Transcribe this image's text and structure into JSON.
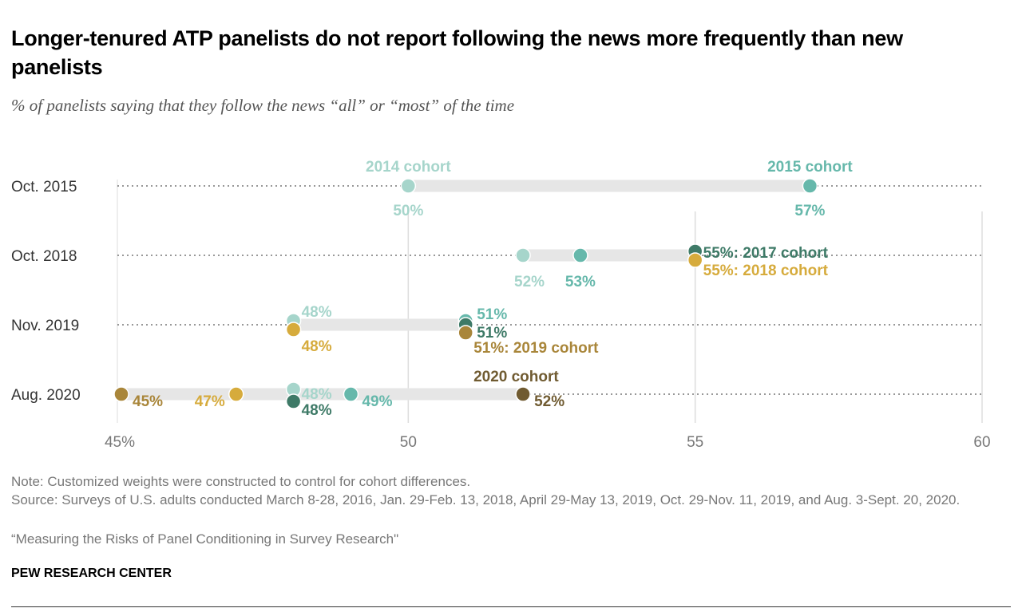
{
  "title": "Longer-tenured ATP panelists do not report following the news more frequently than new panelists",
  "subtitle": "% of panelists saying that they follow the news “all” or “most” of the time",
  "notes": {
    "note": "Note: Customized weights were constructed to control for cohort differences.",
    "source": "Source: Surveys of U.S. adults conducted March 8-28, 2016, Jan. 29-Feb. 13, 2018, April 29-May 13, 2019, Oct. 29-Nov. 11, 2019, and Aug. 3-Sept. 20, 2020.",
    "report": "“Measuring the Risks of Panel Conditioning in Survey Research\"",
    "brand": "PEW RESEARCH CENTER"
  },
  "chart_data": {
    "type": "dot",
    "xlim": [
      45,
      60
    ],
    "x_ticks": [
      "45%",
      "50",
      "55",
      "60"
    ],
    "x_tick_values": [
      45,
      50,
      55,
      60
    ],
    "categories": [
      "Oct. 2015",
      "Oct. 2018",
      "Nov. 2019",
      "Aug. 2020"
    ],
    "cohort_colors": {
      "2014": "#a6d5cb",
      "2015": "#66b8ab",
      "2017": "#3e7a67",
      "2018": "#d6ab3c",
      "2019": "#a9863a",
      "2020": "#705b31"
    },
    "rows": [
      {
        "category": "Oct. 2015",
        "points": [
          {
            "cohort": "2014",
            "value": 50,
            "label": "50%",
            "tag": "2014 cohort"
          },
          {
            "cohort": "2015",
            "value": 57,
            "label": "57%",
            "tag": "2015 cohort"
          }
        ]
      },
      {
        "category": "Oct. 2018",
        "points": [
          {
            "cohort": "2014",
            "value": 52,
            "label": "52%"
          },
          {
            "cohort": "2015",
            "value": 53,
            "label": "53%"
          },
          {
            "cohort": "2017",
            "value": 55,
            "label": "55%: 2017 cohort"
          },
          {
            "cohort": "2018",
            "value": 55,
            "label": "55%: 2018 cohort"
          }
        ]
      },
      {
        "category": "Nov. 2019",
        "points": [
          {
            "cohort": "2014",
            "value": 48,
            "label": "48%"
          },
          {
            "cohort": "2018",
            "value": 48,
            "label": "48%"
          },
          {
            "cohort": "2015",
            "value": 51,
            "label": "51%"
          },
          {
            "cohort": "2017",
            "value": 51,
            "label": "51%"
          },
          {
            "cohort": "2019",
            "value": 51,
            "label": "51%: 2019 cohort"
          }
        ]
      },
      {
        "category": "Aug. 2020",
        "points": [
          {
            "cohort": "2019",
            "value": 45,
            "label": "45%"
          },
          {
            "cohort": "2018",
            "value": 47,
            "label": "47%"
          },
          {
            "cohort": "2014",
            "value": 48,
            "label": "48%"
          },
          {
            "cohort": "2017",
            "value": 48,
            "label": "48%"
          },
          {
            "cohort": "2015",
            "value": 49,
            "label": "49%"
          },
          {
            "cohort": "2020",
            "value": 52,
            "label": "52%",
            "tag": "2020 cohort"
          }
        ]
      }
    ]
  }
}
